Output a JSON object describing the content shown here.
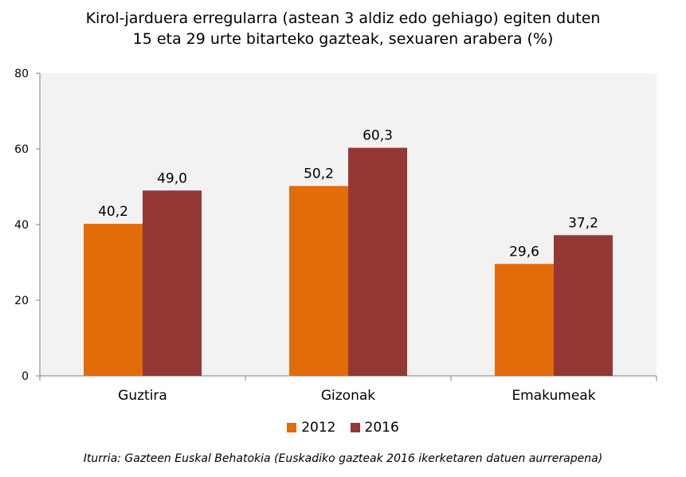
{
  "chart_data": {
    "type": "bar",
    "title_line1": "Kirol-jarduera erregularra (astean 3 aldiz edo gehiago) egiten duten",
    "title_line2": "15 eta 29 urte bitarteko gazteak, sexuaren arabera (%)",
    "categories": [
      "Guztira",
      "Gizonak",
      "Emakumeak"
    ],
    "series": [
      {
        "name": "2012",
        "values": [
          40.2,
          50.2,
          29.6
        ],
        "labels": [
          "40,2",
          "50,2",
          "29,6"
        ],
        "color": "#e36c0a"
      },
      {
        "name": "2016",
        "values": [
          49.0,
          60.3,
          37.2
        ],
        "labels": [
          "49,0",
          "60,3",
          "37,2"
        ],
        "color": "#953735"
      }
    ],
    "ylim": [
      0,
      80
    ],
    "yticks": [
      "0",
      "20",
      "40",
      "60",
      "80"
    ],
    "grid": false,
    "plot_background": "#f2f2f2",
    "legend_position": "bottom",
    "source": "Iturria: Gazteen Euskal Behatokia (Euskadiko gazteak 2016 ikerketaren datuen aurrerapena)"
  }
}
